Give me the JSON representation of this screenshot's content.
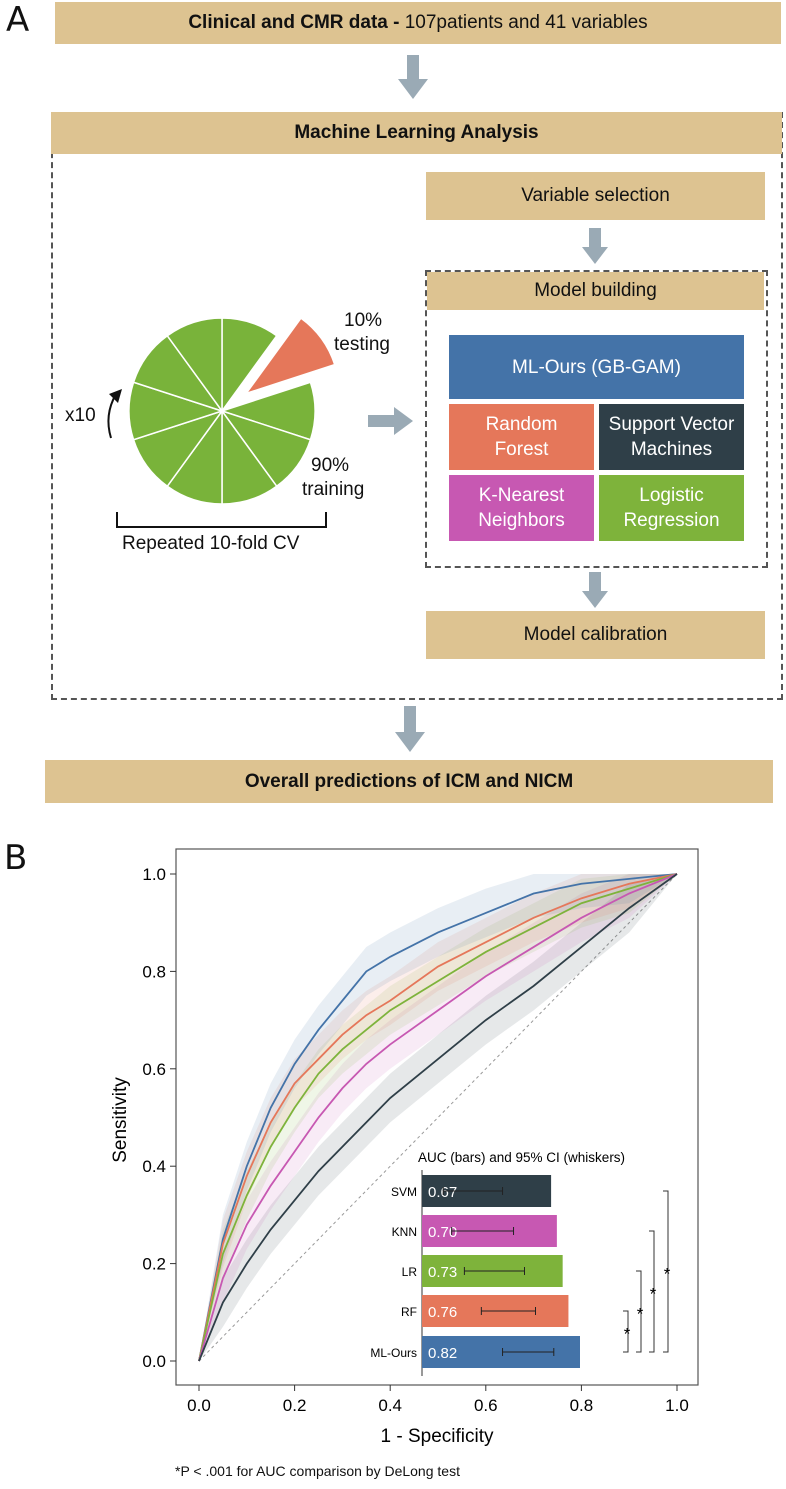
{
  "panelA": {
    "letter": "A",
    "top_box_bold": "Clinical and CMR data -",
    "top_box_rest": " 107patients and 41 variables",
    "ml_header": "Machine Learning Analysis",
    "variable_selection": "Variable selection",
    "model_building": "Model building",
    "model_calibration": "Model calibration",
    "bottom_box": "Overall predictions of ICM and NICM",
    "cv_label": "Repeated 10-fold CV",
    "testing_pct": "10%",
    "testing_word": "testing",
    "training_pct": "90%",
    "training_word": "training",
    "repeat_label": "x10",
    "models": {
      "ours": "ML-Ours (GB-GAM)",
      "rf_line1": "Random",
      "rf_line2": "Forest",
      "svm_line1": "Support Vector",
      "svm_line2": "Machines",
      "knn_line1": "K-Nearest",
      "knn_line2": "Neighbors",
      "lr_line1": "Logistic",
      "lr_line2": "Regression"
    },
    "colors": {
      "box": "#ddc391",
      "ours": "#4473a8",
      "rf": "#e5775a",
      "svm": "#2f3f48",
      "knn": "#c758b2",
      "lr": "#7eb33b",
      "pie": "#79b33a",
      "arrow": "#9aaab5"
    }
  },
  "panelB": {
    "letter": "B",
    "footnote": "*P < .001 for AUC comparison by DeLong test"
  },
  "chart_data": {
    "type": "line",
    "xlabel": "1 - Specificity",
    "ylabel": "Sensitivity",
    "xlim": [
      0,
      1
    ],
    "ylim": [
      0,
      1
    ],
    "xticks": [
      "0.0",
      "0.2",
      "0.4",
      "0.6",
      "0.8",
      "1.0"
    ],
    "yticks": [
      "0.0",
      "0.2",
      "0.4",
      "0.6",
      "0.8",
      "1.0"
    ],
    "diagonal_reference": true,
    "series": [
      {
        "name": "ML-Ours",
        "color": "#4473a8",
        "x": [
          0,
          0.05,
          0.1,
          0.15,
          0.2,
          0.25,
          0.3,
          0.35,
          0.4,
          0.5,
          0.6,
          0.7,
          0.8,
          0.9,
          1.0
        ],
        "y": [
          0,
          0.25,
          0.4,
          0.52,
          0.61,
          0.68,
          0.74,
          0.8,
          0.83,
          0.88,
          0.92,
          0.96,
          0.98,
          0.99,
          1.0
        ]
      },
      {
        "name": "RF",
        "color": "#e5775a",
        "x": [
          0,
          0.05,
          0.1,
          0.15,
          0.2,
          0.25,
          0.3,
          0.35,
          0.4,
          0.5,
          0.6,
          0.7,
          0.8,
          0.9,
          1.0
        ],
        "y": [
          0,
          0.24,
          0.38,
          0.49,
          0.57,
          0.62,
          0.67,
          0.71,
          0.74,
          0.81,
          0.86,
          0.91,
          0.95,
          0.98,
          1.0
        ]
      },
      {
        "name": "LR",
        "color": "#7eb33b",
        "x": [
          0,
          0.05,
          0.1,
          0.15,
          0.2,
          0.25,
          0.3,
          0.35,
          0.4,
          0.5,
          0.6,
          0.7,
          0.8,
          0.9,
          1.0
        ],
        "y": [
          0,
          0.22,
          0.34,
          0.44,
          0.52,
          0.59,
          0.64,
          0.68,
          0.72,
          0.78,
          0.84,
          0.89,
          0.94,
          0.97,
          1.0
        ]
      },
      {
        "name": "KNN",
        "color": "#c758b2",
        "x": [
          0,
          0.05,
          0.1,
          0.15,
          0.2,
          0.25,
          0.3,
          0.35,
          0.4,
          0.5,
          0.6,
          0.7,
          0.8,
          0.9,
          1.0
        ],
        "y": [
          0,
          0.17,
          0.28,
          0.36,
          0.43,
          0.5,
          0.56,
          0.61,
          0.65,
          0.72,
          0.79,
          0.85,
          0.91,
          0.96,
          1.0
        ]
      },
      {
        "name": "SVM",
        "color": "#2f3f48",
        "x": [
          0,
          0.05,
          0.1,
          0.15,
          0.2,
          0.25,
          0.3,
          0.35,
          0.4,
          0.5,
          0.6,
          0.7,
          0.8,
          0.9,
          1.0
        ],
        "y": [
          0,
          0.12,
          0.2,
          0.27,
          0.33,
          0.39,
          0.44,
          0.49,
          0.54,
          0.62,
          0.7,
          0.77,
          0.85,
          0.93,
          1.0
        ]
      }
    ],
    "inset": {
      "type": "bar",
      "orientation": "horizontal",
      "title": "AUC (bars) and 95% CI (whiskers)",
      "categories": [
        "SVM",
        "KNN",
        "LR",
        "RF",
        "ML-Ours"
      ],
      "values": [
        0.67,
        0.7,
        0.73,
        0.76,
        0.82
      ],
      "labels": [
        "0.67",
        "0.70",
        "0.73",
        "0.76",
        "0.82"
      ],
      "ci_low": [
        0.6,
        0.62,
        0.65,
        0.69,
        0.74
      ],
      "ci_high": [
        0.74,
        0.77,
        0.8,
        0.83,
        0.88
      ],
      "colors": [
        "#2f3f48",
        "#c758b2",
        "#7eb33b",
        "#e5775a",
        "#4473a8"
      ],
      "significance": [
        {
          "pair": [
            "ML-Ours",
            "RF"
          ],
          "mark": "*"
        },
        {
          "pair": [
            "ML-Ours",
            "LR"
          ],
          "mark": "*"
        },
        {
          "pair": [
            "ML-Ours",
            "KNN"
          ],
          "mark": "*"
        },
        {
          "pair": [
            "ML-Ours",
            "SVM"
          ],
          "mark": "*"
        }
      ]
    }
  }
}
